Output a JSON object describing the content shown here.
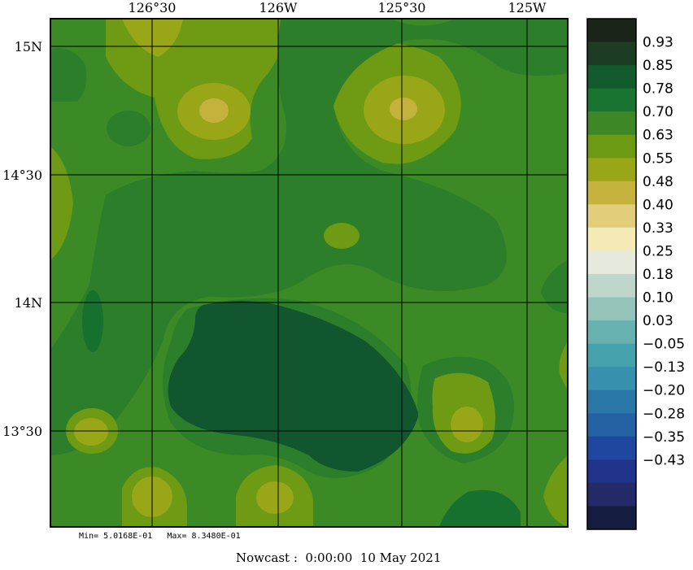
{
  "map": {
    "x_axis_labels": [
      "126°30",
      "126W",
      "125°30",
      "125W"
    ],
    "y_axis_labels": [
      "15N",
      "14°30",
      "14N",
      "13°30"
    ],
    "bands": [
      {
        "name": "band-l5",
        "color": "#2c7e2a"
      },
      {
        "name": "band-l4",
        "color": "#3c8a26"
      },
      {
        "name": "band-l3",
        "color": "#6e9a14"
      },
      {
        "name": "band-l2",
        "color": "#98a618"
      },
      {
        "name": "band-l1",
        "color": "#c5b23c"
      },
      {
        "name": "band-l6",
        "color": "#16712f"
      },
      {
        "name": "band-l7",
        "color": "#11562f"
      }
    ]
  },
  "colorbar": {
    "labels": [
      "0.93",
      "0.85",
      "0.78",
      "0.70",
      "0.63",
      "0.55",
      "0.48",
      "0.40",
      "0.33",
      "0.25",
      "0.18",
      "0.10",
      "0.03",
      "−0.05",
      "−0.13",
      "−0.20",
      "−0.28",
      "−0.35",
      "−0.43"
    ],
    "colors": [
      "#1b2418",
      "#1c3d23",
      "#115b2d",
      "#187430",
      "#3e8726",
      "#6c9b13",
      "#99a618",
      "#c5b33e",
      "#e2cd7a",
      "#f3eab6",
      "#e6eadd",
      "#bed6cb",
      "#95c3ba",
      "#67b2b0",
      "#45a2ac",
      "#3690ae",
      "#2a78a8",
      "#2462a3",
      "#2047a0",
      "#1e3389",
      "#232a67",
      "#141d40"
    ]
  },
  "stats": "Min= 5.0168E-01   Max= 8.3480E-01",
  "footer": "Nowcast :  0:00:00  10 May 2021"
}
